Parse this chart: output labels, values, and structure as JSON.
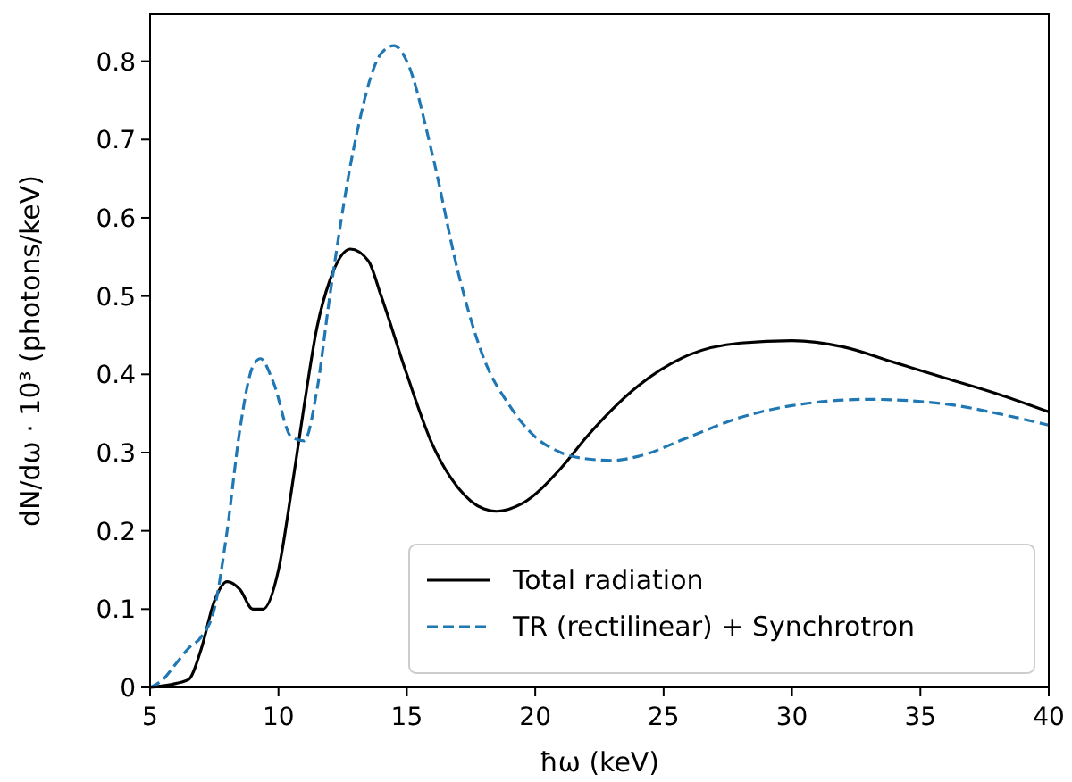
{
  "chart_data": {
    "type": "line",
    "xlabel": "ħω (keV)",
    "ylabel": "dN/dω · 10³ (photons/keV)",
    "xlim": [
      5,
      40
    ],
    "ylim": [
      0,
      0.86
    ],
    "xticks": [
      5,
      10,
      15,
      20,
      25,
      30,
      35,
      40
    ],
    "yticks": [
      0,
      0.1,
      0.2,
      0.3,
      0.4,
      0.5,
      0.6,
      0.7,
      0.8
    ],
    "grid": false,
    "legend": "bottom right",
    "series": [
      {
        "name": "Total radiation",
        "color": "#000000",
        "line_style": "solid",
        "x": [
          5,
          6,
          6.5,
          7,
          7.5,
          8,
          8.5,
          9,
          9.4,
          10,
          10.5,
          11,
          11.5,
          12,
          12.8,
          13.5,
          14,
          15,
          16,
          17,
          18,
          18.5,
          19.5,
          21,
          22,
          24,
          26,
          28,
          30,
          32,
          34,
          36,
          38,
          40
        ],
        "values": [
          0,
          0.005,
          0.01,
          0.05,
          0.11,
          0.135,
          0.125,
          0.1,
          0.1,
          0.15,
          0.25,
          0.36,
          0.46,
          0.52,
          0.56,
          0.545,
          0.5,
          0.4,
          0.31,
          0.255,
          0.228,
          0.225,
          0.235,
          0.28,
          0.32,
          0.385,
          0.425,
          0.44,
          0.443,
          0.435,
          0.415,
          0.395,
          0.375,
          0.352
        ]
      },
      {
        "name": "TR (rectilinear) + Synchrotron",
        "color": "#1f77b4",
        "line_style": "dashed",
        "x": [
          5,
          5.5,
          6,
          6.5,
          7,
          7.5,
          8,
          8.5,
          9,
          9.3,
          9.8,
          10.5,
          11,
          11.5,
          12,
          13,
          14,
          14.5,
          15,
          16,
          17,
          18,
          19,
          20,
          21,
          22,
          23,
          24,
          26,
          28,
          30,
          33,
          36,
          38,
          40
        ],
        "values": [
          0,
          0.01,
          0.03,
          0.05,
          0.065,
          0.1,
          0.2,
          0.33,
          0.41,
          0.42,
          0.39,
          0.32,
          0.315,
          0.38,
          0.5,
          0.7,
          0.81,
          0.82,
          0.8,
          0.68,
          0.53,
          0.42,
          0.36,
          0.32,
          0.3,
          0.292,
          0.29,
          0.295,
          0.32,
          0.345,
          0.36,
          0.368,
          0.362,
          0.35,
          0.335
        ]
      }
    ]
  }
}
